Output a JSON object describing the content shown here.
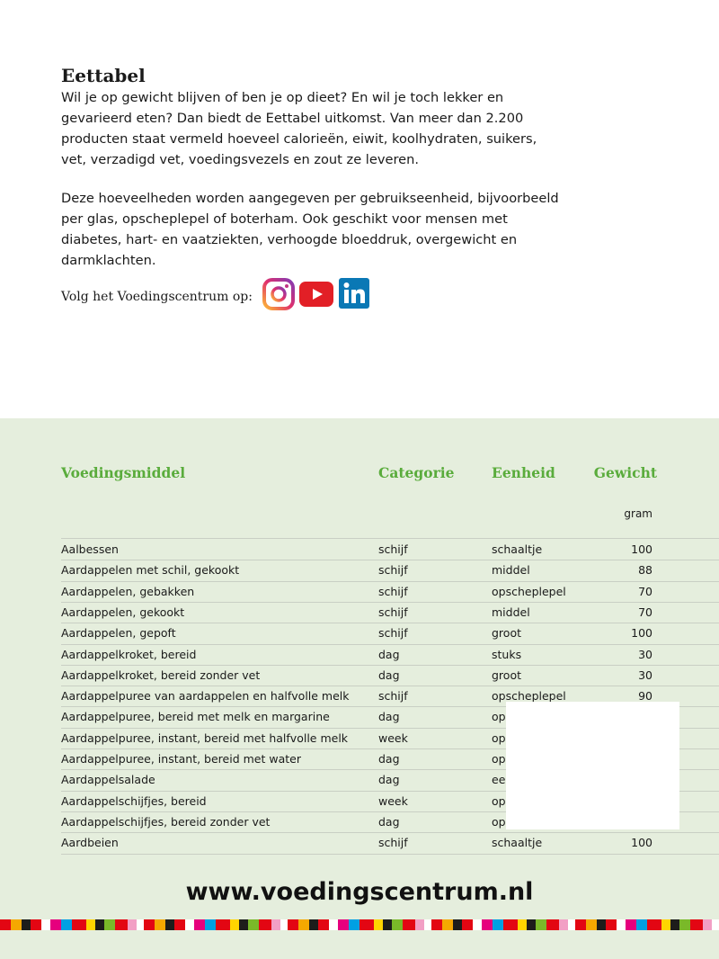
{
  "intro": {
    "title": "Eettabel",
    "paragraphs": [
      "Wil je op gewicht blijven of ben je op dieet? En wil je toch lekker en gevarieerd eten? Dan biedt de Eettabel uitkomst. Van meer dan 2.200 producten staat vermeld hoeveel calorieën, eiwit, koolhydraten, suikers, vet, verzadigd vet, voedingsvezels en zout ze leveren.",
      "Deze hoeveelheden worden aangegeven per gebruikseenheid, bijvoorbeeld per glas, opscheplepel of boterham. Ook geschikt voor mensen met diabetes, hart- en vaatziekten, verhoogde bloeddruk, overgewicht en darmklachten."
    ],
    "follow": "Volg het Voedingscentrum op:"
  },
  "table": {
    "headers": [
      "Voedingsmiddel",
      "Categorie",
      "Eenheid",
      "Gewicht"
    ],
    "unit": "gram",
    "rows": [
      [
        "Aalbessen",
        "schijf",
        "schaaltje",
        100
      ],
      [
        "Aardappelen met schil, gekookt",
        "schijf",
        "middel",
        88
      ],
      [
        "Aardappelen, gebakken",
        "schijf",
        "opscheplepel",
        70
      ],
      [
        "Aardappelen, gekookt",
        "schijf",
        "middel",
        70
      ],
      [
        "Aardappelen, gepoft",
        "schijf",
        "groot",
        100
      ],
      [
        "Aardappelkroket, bereid",
        "dag",
        "stuks",
        30
      ],
      [
        "Aardappelkroket, bereid zonder vet",
        "dag",
        "groot",
        30
      ],
      [
        "Aardappelpuree van aardappelen en halfvolle melk",
        "schijf",
        "opscheplepel",
        90
      ],
      [
        "Aardappelpuree, bereid met melk en margarine",
        "dag",
        "op"
      ],
      [
        "Aardappelpuree, instant, bereid met halfvolle melk",
        "week",
        "op"
      ],
      [
        "Aardappelpuree, instant, bereid met water",
        "dag",
        "op"
      ],
      [
        "Aardappelsalade",
        "dag",
        "ee"
      ],
      [
        "Aardappelschijfjes, bereid",
        "week",
        "op"
      ],
      [
        "Aardappelschijfjes, bereid zonder vet",
        "dag",
        "op"
      ],
      [
        "Aardbeien",
        "schijf",
        "schaaltje",
        100
      ]
    ]
  },
  "footer": {
    "url": "www.voedingscentrum.nl"
  }
}
